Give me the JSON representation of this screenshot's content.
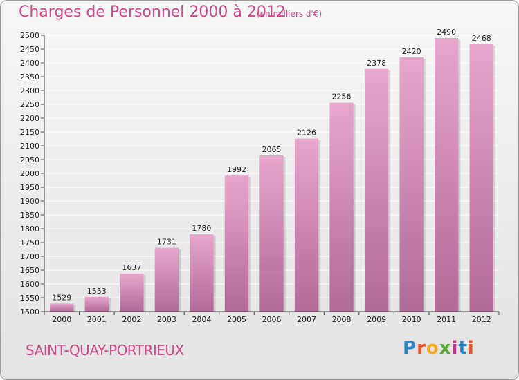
{
  "header": {
    "title": "Charges de Personnel 2000 à 2012",
    "unit": "(en milliers d'€)"
  },
  "footer": {
    "city": "SAINT-QUAY-PORTRIEUX",
    "brand_letters": [
      "P",
      "r",
      "o",
      "x",
      "i",
      "t",
      "i"
    ],
    "brand_colors": [
      "#2e87c8",
      "#e3562a",
      "#f0a81c",
      "#55a632",
      "#c8338a",
      "#2e87c8",
      "#e3562a"
    ]
  },
  "colors": {
    "bar_top": "#e8a6cc",
    "bar_bottom": "#b06a96",
    "grid": "#ffffff",
    "title": "#d0488a"
  },
  "chart_data": {
    "type": "bar",
    "categories": [
      "2000",
      "2001",
      "2002",
      "2003",
      "2004",
      "2005",
      "2006",
      "2007",
      "2008",
      "2009",
      "2010",
      "2011",
      "2012"
    ],
    "values": [
      1529,
      1553,
      1637,
      1731,
      1780,
      1992,
      2065,
      2126,
      2256,
      2378,
      2420,
      2490,
      2468
    ],
    "title": "Charges de Personnel 2000 à 2012",
    "xlabel": "",
    "ylabel": "",
    "ylim": [
      1500,
      2500
    ],
    "ytick_step": 50,
    "grid": true,
    "data_labels": true
  }
}
